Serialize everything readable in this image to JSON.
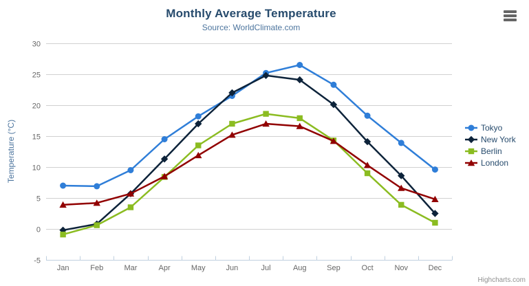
{
  "chart": {
    "title": "Monthly Average Temperature",
    "subtitle": "Source: WorldClimate.com",
    "ylabel": "Temperature (°C)",
    "credits": "Highcharts.com"
  },
  "icons": {
    "menu": "hamburger-menu-icon"
  },
  "colors": {
    "title": "#274b6d",
    "subtitle": "#4d759e",
    "axis_label": "#666666",
    "grid_line": "#d0d0d0",
    "axis_line": "#c0d0e0",
    "legend_text": "#274b6d",
    "credits_text": "#909090"
  },
  "chart_data": {
    "type": "line",
    "title": "Monthly Average Temperature",
    "subtitle": "Source: WorldClimate.com",
    "xlabel": "",
    "ylabel": "Temperature (°C)",
    "categories": [
      "Jan",
      "Feb",
      "Mar",
      "Apr",
      "May",
      "Jun",
      "Jul",
      "Aug",
      "Sep",
      "Oct",
      "Nov",
      "Dec"
    ],
    "ylim": [
      -5,
      30
    ],
    "yticks": [
      -5,
      0,
      5,
      10,
      15,
      20,
      25,
      30
    ],
    "grid": true,
    "legend_position": "right",
    "series": [
      {
        "name": "Tokyo",
        "color": "#2f7ed8",
        "marker": "circle",
        "values": [
          7.0,
          6.9,
          9.5,
          14.5,
          18.2,
          21.5,
          25.2,
          26.5,
          23.3,
          18.3,
          13.9,
          9.6
        ]
      },
      {
        "name": "New York",
        "color": "#0d233a",
        "marker": "diamond",
        "values": [
          -0.2,
          0.8,
          5.7,
          11.3,
          17.0,
          22.0,
          24.8,
          24.1,
          20.1,
          14.1,
          8.6,
          2.5
        ]
      },
      {
        "name": "Berlin",
        "color": "#8bbc21",
        "marker": "square",
        "values": [
          -0.9,
          0.6,
          3.5,
          8.4,
          13.5,
          17.0,
          18.6,
          17.9,
          14.3,
          9.0,
          3.9,
          1.0
        ]
      },
      {
        "name": "London",
        "color": "#910000",
        "marker": "triangle",
        "values": [
          3.9,
          4.2,
          5.7,
          8.5,
          11.9,
          15.2,
          17.0,
          16.6,
          14.2,
          10.3,
          6.6,
          4.8
        ]
      }
    ]
  }
}
